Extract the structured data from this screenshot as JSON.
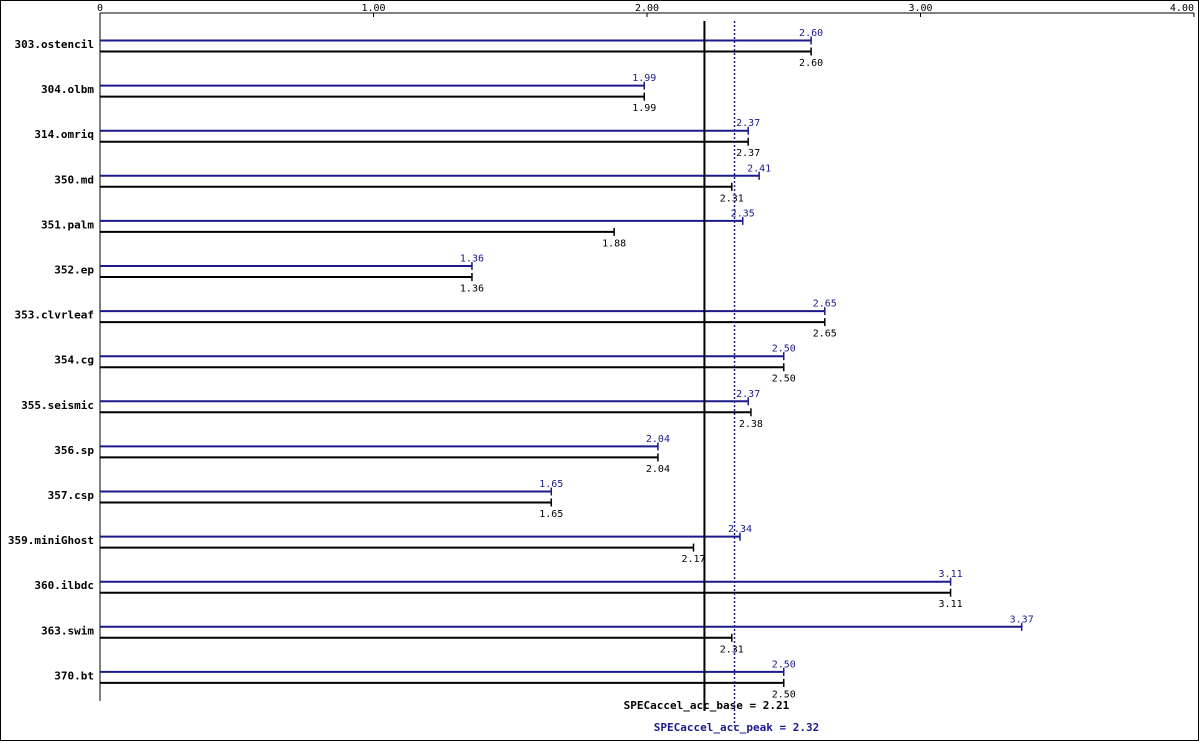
{
  "chart_data": {
    "type": "bar",
    "orientation": "horizontal",
    "xlim": [
      0,
      4
    ],
    "ticks": [
      {
        "value": 0,
        "label": "0"
      },
      {
        "value": 1,
        "label": "1.00"
      },
      {
        "value": 2,
        "label": "2.00"
      },
      {
        "value": 3,
        "label": "3.00"
      },
      {
        "value": 4,
        "label": "4.00"
      }
    ],
    "categories": [
      "303.ostencil",
      "304.olbm",
      "314.omriq",
      "350.md",
      "351.palm",
      "352.ep",
      "353.clvrleaf",
      "354.cg",
      "355.seismic",
      "356.sp",
      "357.csp",
      "359.miniGhost",
      "360.ilbdc",
      "363.swim",
      "370.bt"
    ],
    "series": [
      {
        "color": "#1a1a8c",
        "values": [
          2.6,
          1.99,
          2.37,
          2.41,
          2.35,
          1.36,
          2.65,
          2.5,
          2.37,
          2.04,
          1.65,
          2.34,
          3.11,
          3.37,
          2.5
        ],
        "labels": [
          "2.60",
          "1.99",
          "2.37",
          "2.41",
          "2.35",
          "1.36",
          "2.65",
          "2.50",
          "2.37",
          "2.04",
          "1.65",
          "2.34",
          "3.11",
          "3.37",
          "2.50"
        ]
      },
      {
        "color": "#000000",
        "values": [
          2.6,
          1.99,
          2.37,
          2.31,
          1.88,
          1.36,
          2.65,
          2.5,
          2.38,
          2.04,
          1.65,
          2.17,
          3.11,
          2.31,
          2.5
        ],
        "labels": [
          "2.60",
          "1.99",
          "2.37",
          "2.31",
          "1.88",
          "1.36",
          "2.65",
          "2.50",
          "2.38",
          "2.04",
          "1.65",
          "2.17",
          "3.11",
          "2.31",
          "2.50"
        ]
      }
    ],
    "reference_lines": [
      {
        "value": 2.21,
        "label": "SPECaccel_acc_base = 2.21",
        "color": "#000000",
        "style": "solid"
      },
      {
        "value": 2.32,
        "label": "SPECaccel_acc_peak = 2.32",
        "color": "#1a1a8c",
        "style": "dotted"
      }
    ]
  }
}
